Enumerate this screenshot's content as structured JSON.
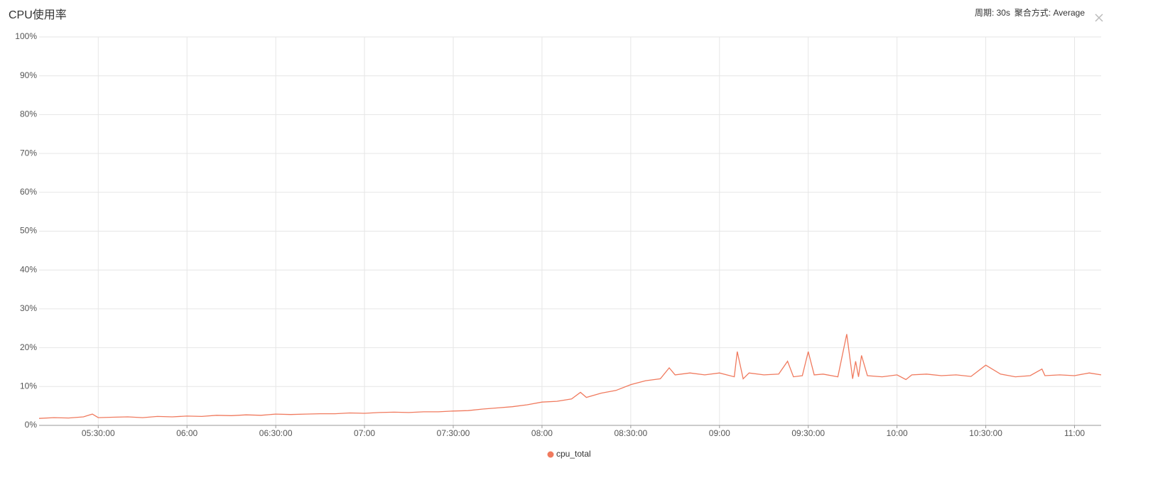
{
  "chart_data": {
    "type": "line",
    "title": "CPU使用率",
    "controls": {
      "period": "周期: 30s",
      "aggregation": "聚合方式: Average"
    },
    "x": [
      "05:10",
      "05:15",
      "05:20",
      "05:25",
      "05:28",
      "05:30",
      "05:35",
      "05:40",
      "05:45",
      "05:50",
      "05:55",
      "06:00",
      "06:05",
      "06:10",
      "06:15",
      "06:20",
      "06:25",
      "06:30",
      "06:35",
      "06:40",
      "06:45",
      "06:50",
      "06:55",
      "07:00",
      "07:05",
      "07:10",
      "07:15",
      "07:20",
      "07:25",
      "07:30",
      "07:35",
      "07:40",
      "07:45",
      "07:50",
      "07:55",
      "08:00",
      "08:05",
      "08:10",
      "08:13",
      "08:15",
      "08:20",
      "08:25",
      "08:30",
      "08:35",
      "08:40",
      "08:43",
      "08:45",
      "08:50",
      "08:55",
      "09:00",
      "09:05",
      "09:06",
      "09:08",
      "09:10",
      "09:15",
      "09:20",
      "09:23",
      "09:25",
      "09:28",
      "09:30",
      "09:32",
      "09:35",
      "09:40",
      "09:43",
      "09:45",
      "09:46",
      "09:47",
      "09:48",
      "09:50",
      "09:55",
      "10:00",
      "10:03",
      "10:05",
      "10:10",
      "10:15",
      "10:20",
      "10:25",
      "10:30",
      "10:35",
      "10:40",
      "10:45",
      "10:49",
      "10:50",
      "10:55",
      "11:00",
      "11:05",
      "11:09"
    ],
    "series": [
      {
        "name": "cpu_total",
        "color": "#f07a5e",
        "values": [
          1.8,
          2.0,
          1.9,
          2.2,
          2.9,
          2.0,
          2.1,
          2.2,
          2.0,
          2.3,
          2.2,
          2.4,
          2.3,
          2.6,
          2.5,
          2.7,
          2.6,
          2.9,
          2.8,
          2.9,
          3.0,
          3.0,
          3.2,
          3.1,
          3.3,
          3.4,
          3.3,
          3.5,
          3.5,
          3.7,
          3.8,
          4.2,
          4.5,
          4.8,
          5.3,
          6.0,
          6.2,
          6.8,
          8.5,
          7.2,
          8.3,
          9.0,
          10.5,
          11.5,
          12.0,
          14.8,
          13.0,
          13.5,
          13.0,
          13.5,
          12.5,
          19.0,
          12.0,
          13.5,
          13.0,
          13.2,
          16.5,
          12.5,
          12.8,
          19.0,
          13.0,
          13.2,
          12.5,
          23.5,
          12.0,
          16.5,
          12.5,
          18.0,
          12.8,
          12.5,
          13.0,
          11.8,
          13.0,
          13.2,
          12.8,
          13.0,
          12.6,
          15.5,
          13.2,
          12.5,
          12.8,
          14.5,
          12.8,
          13.0,
          12.8,
          13.5,
          13.0
        ]
      }
    ],
    "xlim": [
      "05:10",
      "11:09"
    ],
    "xticks": [
      {
        "value": "05:30",
        "label": "05:30:00"
      },
      "06:00",
      {
        "value": "06:30",
        "label": "06:30:00"
      },
      "07:00",
      {
        "value": "07:30",
        "label": "07:30:00"
      },
      "08:00",
      {
        "value": "08:30",
        "label": "08:30:00"
      },
      "09:00",
      {
        "value": "09:30",
        "label": "09:30:00"
      },
      "10:00",
      {
        "value": "10:30",
        "label": "10:30:00"
      },
      "11:00"
    ],
    "ylim": [
      0,
      100
    ],
    "yticks": [
      {
        "value": 0,
        "label": "0%"
      },
      {
        "value": 10,
        "label": "10%"
      },
      {
        "value": 20,
        "label": "20%"
      },
      {
        "value": 30,
        "label": "30%"
      },
      {
        "value": 40,
        "label": "40%"
      },
      {
        "value": 50,
        "label": "50%"
      },
      {
        "value": 60,
        "label": "60%"
      },
      {
        "value": 70,
        "label": "70%"
      },
      {
        "value": 80,
        "label": "80%"
      },
      {
        "value": 90,
        "label": "90%"
      },
      {
        "value": 100,
        "label": "100%"
      }
    ],
    "grid": true
  }
}
